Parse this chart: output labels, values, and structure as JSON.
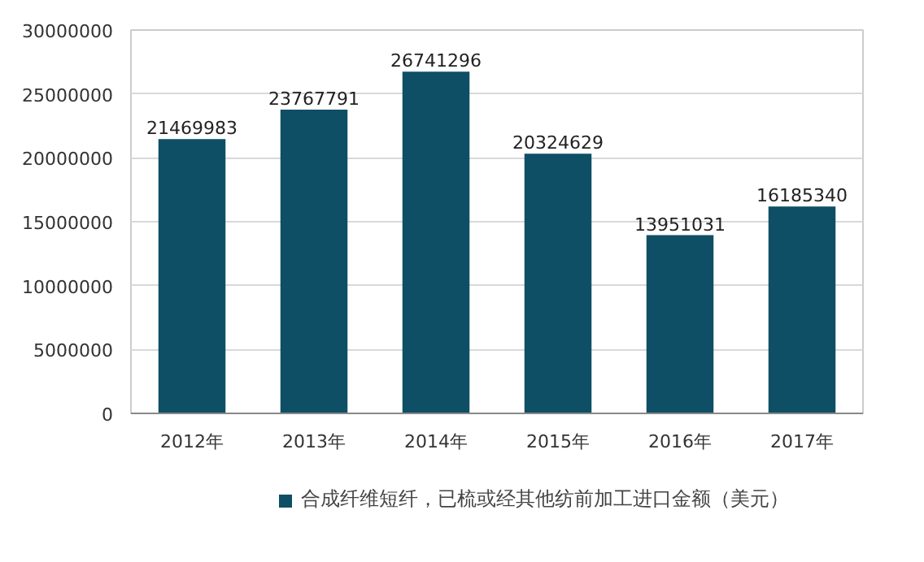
{
  "chart_data": {
    "type": "bar",
    "categories": [
      "2012年",
      "2013年",
      "2014年",
      "2015年",
      "2016年",
      "2017年"
    ],
    "series": [
      {
        "name": "合成纤维短纤，已梳或经其他纺前加工进口金额（美元）",
        "color": "#0e4f66",
        "values": [
          21469983,
          23767791,
          26741296,
          20324629,
          13951031,
          16185340
        ]
      }
    ],
    "ylim": [
      0,
      30000000
    ],
    "yticks": [
      0,
      5000000,
      10000000,
      15000000,
      20000000,
      25000000,
      30000000
    ],
    "grid": "y",
    "legend": "bottom",
    "data_labels": true
  }
}
